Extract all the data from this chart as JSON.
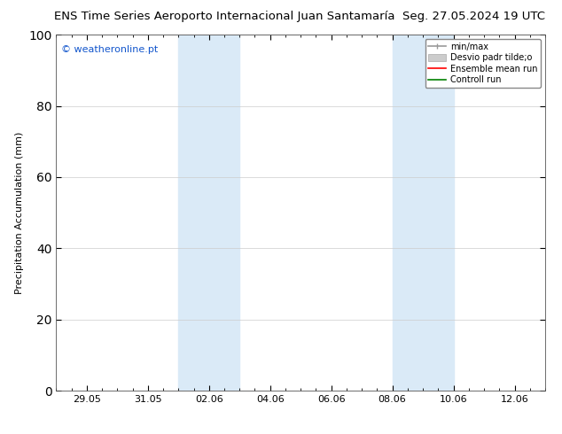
{
  "title": "ENS Time Series Aeroporto Internacional Juan Santamaría",
  "date_label": "Seg. 27.05.2024 19 UTC",
  "watermark": "© weatheronline.pt",
  "ylabel": "Precipitation Accumulation (mm)",
  "ylim": [
    0,
    100
  ],
  "yticks": [
    0,
    20,
    40,
    60,
    80,
    100
  ],
  "x_tick_positions": [
    1,
    3,
    5,
    7,
    9,
    11,
    13,
    15
  ],
  "x_tick_labels": [
    "29.05",
    "31.05",
    "02.06",
    "04.06",
    "06.06",
    "08.06",
    "10.06",
    "12.06"
  ],
  "xlim": [
    0,
    16
  ],
  "shaded_bands": [
    {
      "xstart": 4.0,
      "xend": 6.0
    },
    {
      "xstart": 11.0,
      "xend": 13.0
    }
  ],
  "legend_entries": [
    {
      "label": "min/max",
      "color": "#aaaaaa",
      "lw": 1.5
    },
    {
      "label": "Desvio padr tilde;o",
      "color": "#cccccc",
      "lw": 8
    },
    {
      "label": "Ensemble mean run",
      "color": "red",
      "lw": 1.5
    },
    {
      "label": "Controll run",
      "color": "green",
      "lw": 1.5
    }
  ],
  "background_color": "#ffffff",
  "plot_bg_color": "#ffffff",
  "shade_color": "#daeaf7",
  "grid_color": "#cccccc",
  "title_fontsize": 9.5,
  "date_fontsize": 9.5,
  "watermark_color": "#1155cc",
  "watermark_fontsize": 8,
  "tick_label_fontsize": 8,
  "ylabel_fontsize": 8
}
